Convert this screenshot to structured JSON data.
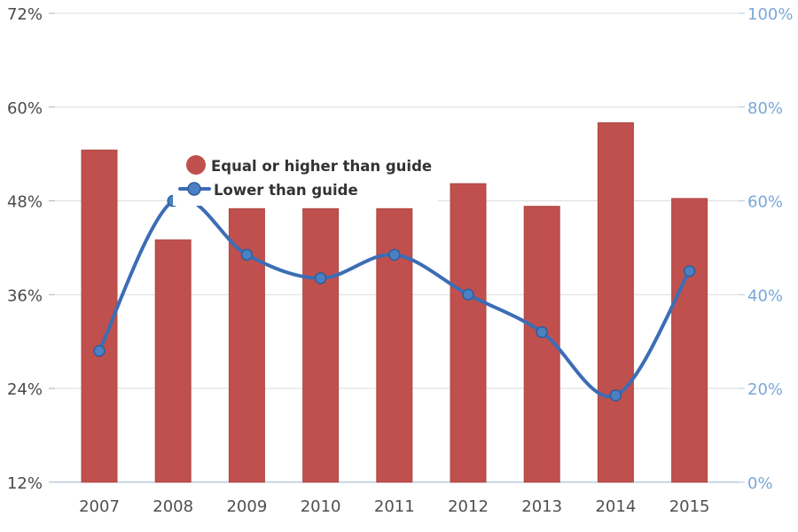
{
  "chart_data": {
    "type": "combo",
    "categories": [
      "2007",
      "2008",
      "2009",
      "2010",
      "2011",
      "2012",
      "2013",
      "2014",
      "2015"
    ],
    "series": [
      {
        "name": "Equal or higher than guide",
        "type": "bar",
        "axis": "left",
        "color": "#c0504d",
        "border_color": "#ae4744",
        "values": [
          54.5,
          43,
          47,
          47,
          47,
          50.2,
          47.3,
          58,
          48.3
        ]
      },
      {
        "name": "Lower than guide",
        "type": "line",
        "axis": "right",
        "color": "#3c6db5",
        "marker_color": "#4b80c2",
        "marker_border_color": "#2e5e9e",
        "values": [
          28,
          60,
          48.5,
          43.5,
          48.5,
          40,
          32,
          18.5,
          45
        ]
      }
    ],
    "left_axis": {
      "range": [
        12,
        72
      ],
      "ticks": [
        12,
        24,
        36,
        48,
        60,
        72
      ],
      "tick_labels": [
        "12%",
        "24%",
        "36%",
        "48%",
        "60%",
        "72%"
      ],
      "label_color": "#4a4a4a"
    },
    "right_axis": {
      "range": [
        0,
        100
      ],
      "ticks": [
        0,
        20,
        40,
        60,
        80,
        100
      ],
      "tick_labels": [
        "0%",
        "20%",
        "40%",
        "60%",
        "80%",
        "100%"
      ],
      "label_color": "#7aa7d9"
    },
    "x_axis": {
      "label_color": "#4f4f4f"
    },
    "grid": {
      "show": true,
      "color": "#dcdcdc",
      "tick_stub_color": "#b0b0b0",
      "baseline_color": "#b9cbdf"
    },
    "legend": {
      "position": "inside-top-left",
      "background": "#ffffff",
      "text_color": "#333333"
    }
  }
}
